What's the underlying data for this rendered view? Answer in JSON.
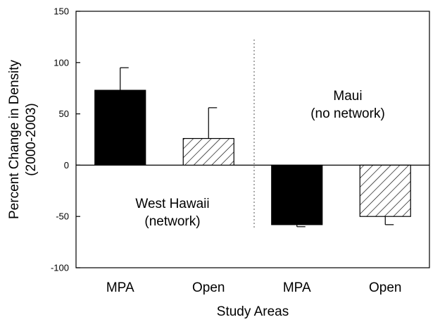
{
  "chart_data": {
    "type": "bar",
    "categories": [
      "MPA",
      "Open",
      "MPA",
      "Open"
    ],
    "values": [
      73,
      26,
      -58,
      -50
    ],
    "errors": [
      22,
      30,
      2,
      8
    ],
    "fills": [
      "solid",
      "hatch",
      "solid",
      "hatch"
    ],
    "xlabel": "Study Areas",
    "ylabel_line1": "Percent Change in Density",
    "ylabel_line2": "(2000-2003)",
    "ylim": [
      -100,
      150
    ],
    "yticks": [
      -100,
      -50,
      0,
      50,
      100,
      150
    ],
    "grid": false,
    "annotations": {
      "west_hawaii_line1": "West Hawaii",
      "west_hawaii_line2": "(network)",
      "maui_line1": "Maui",
      "maui_line2": "(no network)"
    },
    "colors": {
      "bar_fill": "#000000",
      "hatch_stroke": "#000000",
      "axis": "#000000",
      "divider": "#555555"
    }
  }
}
